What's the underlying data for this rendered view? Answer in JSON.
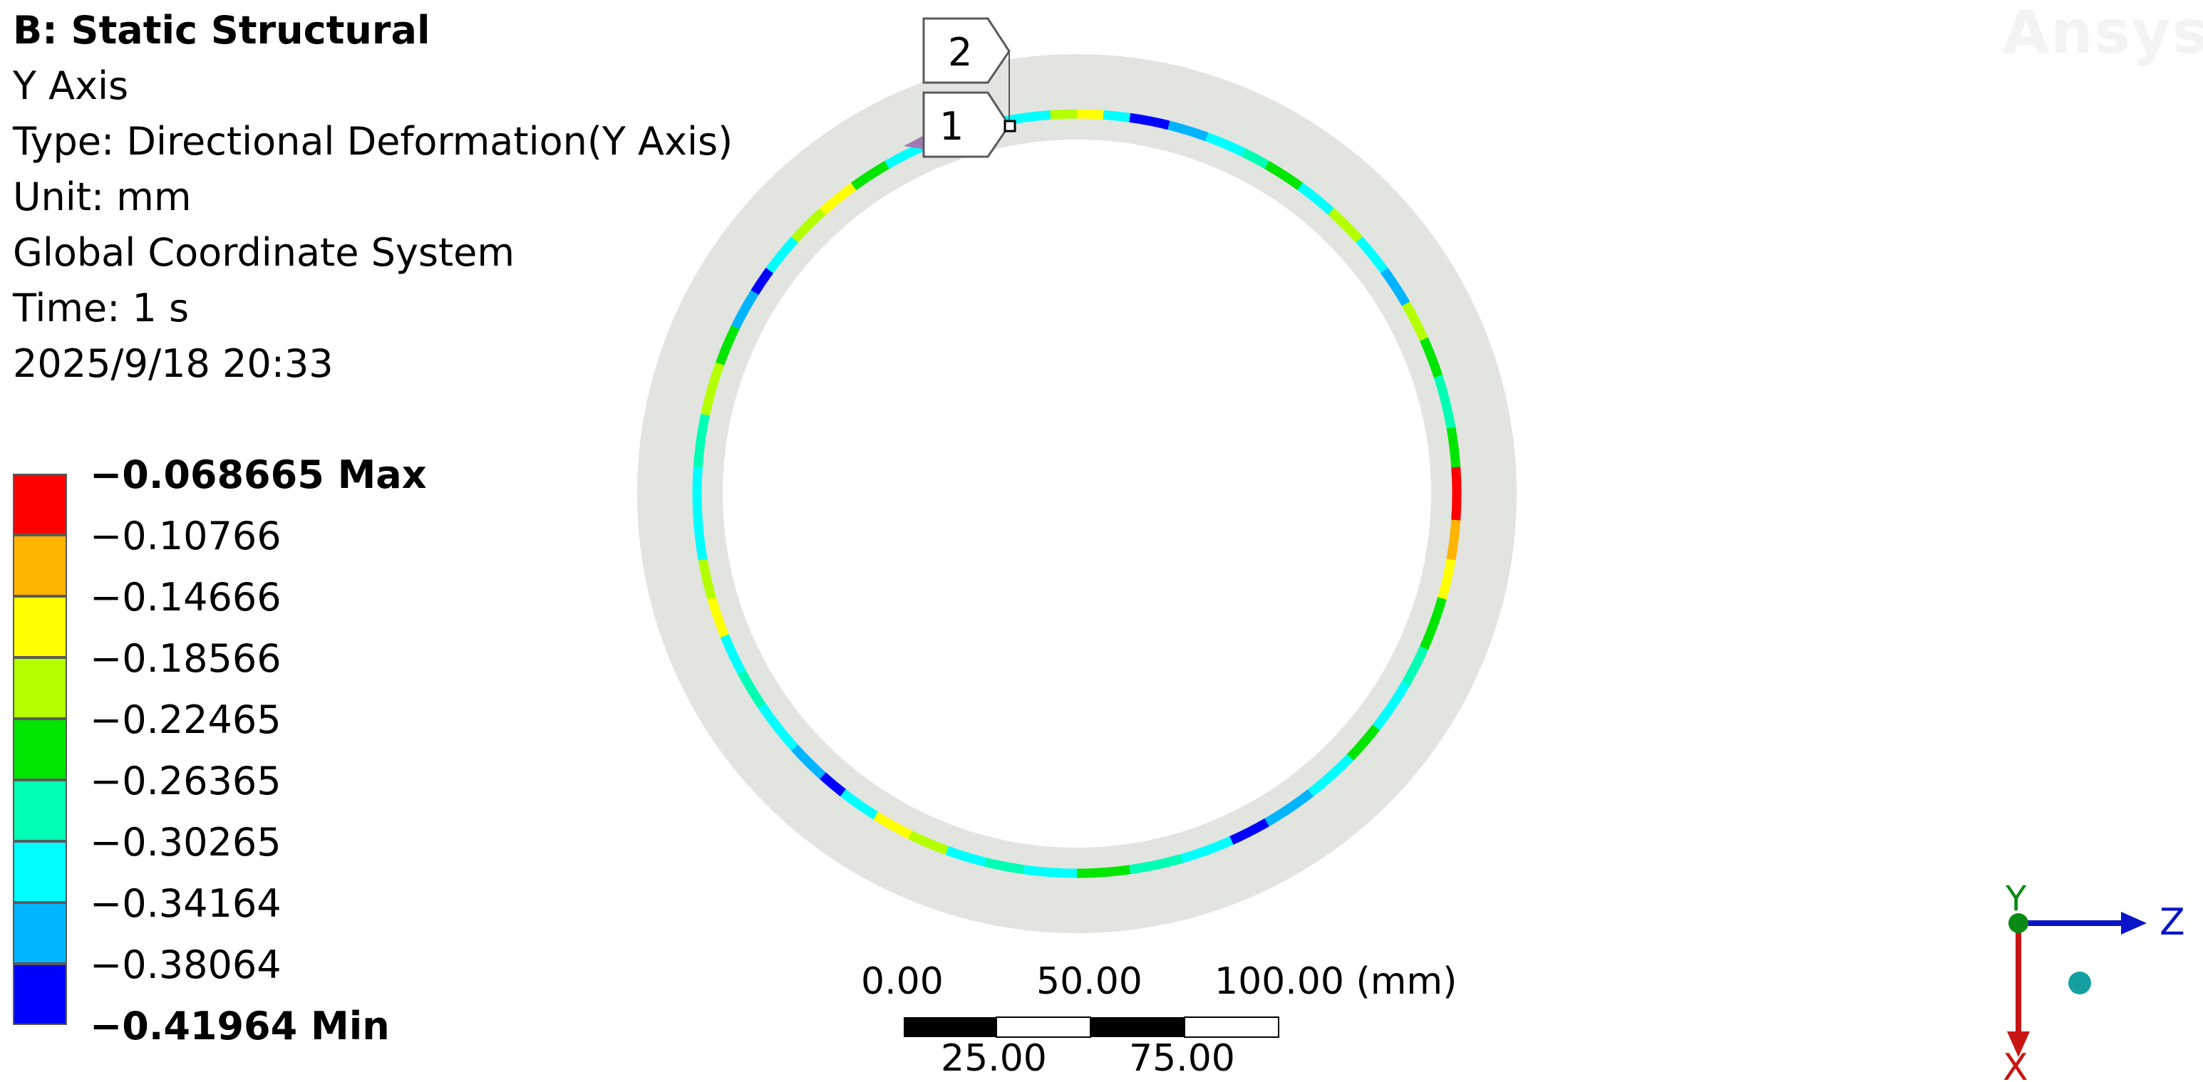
{
  "header": {
    "title": "B: Static Structural",
    "lines": [
      "Y Axis",
      "Type: Directional Deformation(Y Axis)",
      "Unit: mm",
      "Global Coordinate System",
      "Time: 1 s",
      "2025/9/18 20:33"
    ]
  },
  "legend": {
    "levels": [
      {
        "label": "−0.068665 Max",
        "color": "#ff0000"
      },
      {
        "label": "−0.10766",
        "color": "#ffb400"
      },
      {
        "label": "−0.14666",
        "color": "#ffff00"
      },
      {
        "label": "−0.18566",
        "color": "#b4ff00"
      },
      {
        "label": "−0.22465",
        "color": "#00e600"
      },
      {
        "label": "−0.26365",
        "color": "#00ffb4"
      },
      {
        "label": "−0.30265",
        "color": "#00ffff"
      },
      {
        "label": "−0.34164",
        "color": "#00b4ff"
      },
      {
        "label": "−0.38064",
        "color": "#0000ff"
      },
      {
        "label": "−0.41964 Min",
        "color": ""
      }
    ]
  },
  "probes": {
    "probe1": "1",
    "probe2": "2"
  },
  "scale_bar": {
    "top_labels": [
      "0.00",
      "50.00",
      "100.00 (mm)"
    ],
    "bottom_labels": [
      "25.00",
      "75.00"
    ]
  },
  "triad": {
    "y_label": "Y",
    "z_label": "Z",
    "x_label": "X"
  },
  "brand": "Ansys",
  "colors": {
    "ring_background": "#e2e4e0",
    "outline": "#5a5a5a"
  }
}
